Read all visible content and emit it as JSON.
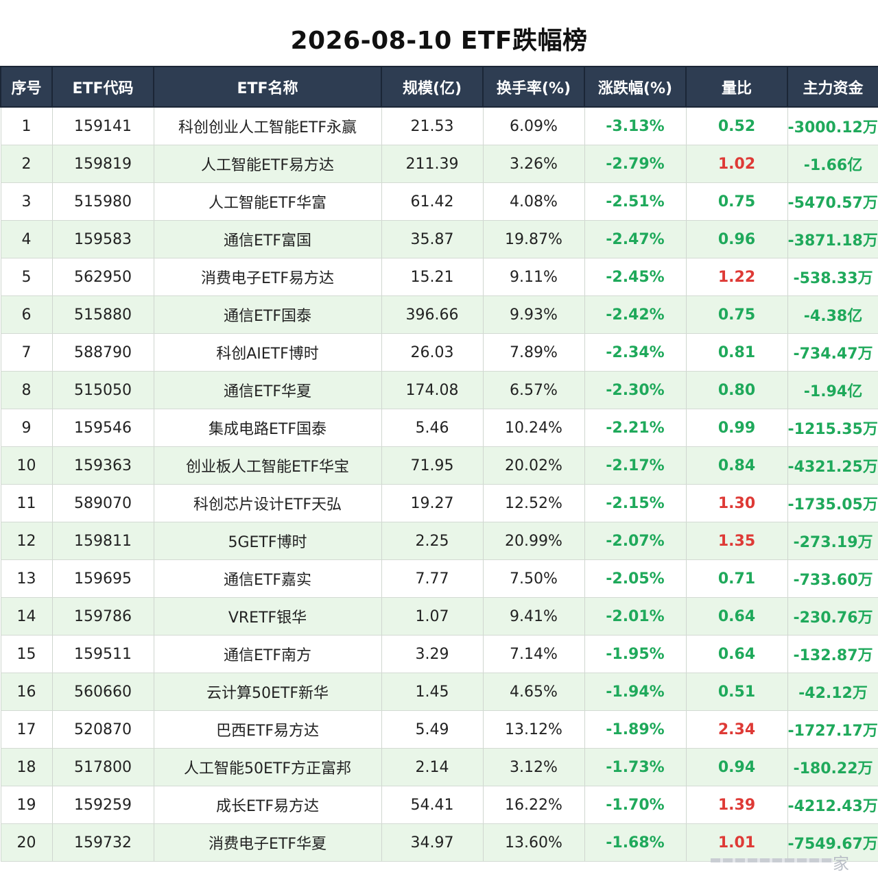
{
  "title": "2026-08-10 ETF跌幅榜",
  "colors": {
    "header_bg": "#2e3d52",
    "row_alt": "#e9f6e8",
    "down": "#1fa95b",
    "up": "#de3a36"
  },
  "headers": [
    "序号",
    "ETF代码",
    "ETF名称",
    "规模(亿)",
    "换手率(%)",
    "涨跌幅(%)",
    "量比",
    "主力资金"
  ],
  "rows": [
    {
      "no": "1",
      "code": "159141",
      "name": "科创创业人工智能ETF永赢",
      "size": "21.53",
      "turnover": "6.09%",
      "change": "-3.13%",
      "ratio": "0.52",
      "ratio_dir": "down",
      "flow": "-3000.12万",
      "flow_unit": "wan"
    },
    {
      "no": "2",
      "code": "159819",
      "name": "人工智能ETF易方达",
      "size": "211.39",
      "turnover": "3.26%",
      "change": "-2.79%",
      "ratio": "1.02",
      "ratio_dir": "up",
      "flow": "-1.66亿",
      "flow_unit": "yi"
    },
    {
      "no": "3",
      "code": "515980",
      "name": "人工智能ETF华富",
      "size": "61.42",
      "turnover": "4.08%",
      "change": "-2.51%",
      "ratio": "0.75",
      "ratio_dir": "down",
      "flow": "-5470.57万",
      "flow_unit": "wan"
    },
    {
      "no": "4",
      "code": "159583",
      "name": "通信ETF富国",
      "size": "35.87",
      "turnover": "19.87%",
      "change": "-2.47%",
      "ratio": "0.96",
      "ratio_dir": "down",
      "flow": "-3871.18万",
      "flow_unit": "wan"
    },
    {
      "no": "5",
      "code": "562950",
      "name": "消费电子ETF易方达",
      "size": "15.21",
      "turnover": "9.11%",
      "change": "-2.45%",
      "ratio": "1.22",
      "ratio_dir": "up",
      "flow": "-538.33万",
      "flow_unit": "yi"
    },
    {
      "no": "6",
      "code": "515880",
      "name": "通信ETF国泰",
      "size": "396.66",
      "turnover": "9.93%",
      "change": "-2.42%",
      "ratio": "0.75",
      "ratio_dir": "down",
      "flow": "-4.38亿",
      "flow_unit": "yi"
    },
    {
      "no": "7",
      "code": "588790",
      "name": "科创AIETF博时",
      "size": "26.03",
      "turnover": "7.89%",
      "change": "-2.34%",
      "ratio": "0.81",
      "ratio_dir": "down",
      "flow": "-734.47万",
      "flow_unit": "yi"
    },
    {
      "no": "8",
      "code": "515050",
      "name": "通信ETF华夏",
      "size": "174.08",
      "turnover": "6.57%",
      "change": "-2.30%",
      "ratio": "0.80",
      "ratio_dir": "down",
      "flow": "-1.94亿",
      "flow_unit": "yi"
    },
    {
      "no": "9",
      "code": "159546",
      "name": "集成电路ETF国泰",
      "size": "5.46",
      "turnover": "10.24%",
      "change": "-2.21%",
      "ratio": "0.99",
      "ratio_dir": "down",
      "flow": "-1215.35万",
      "flow_unit": "wan"
    },
    {
      "no": "10",
      "code": "159363",
      "name": "创业板人工智能ETF华宝",
      "size": "71.95",
      "turnover": "20.02%",
      "change": "-2.17%",
      "ratio": "0.84",
      "ratio_dir": "down",
      "flow": "-4321.25万",
      "flow_unit": "wan"
    },
    {
      "no": "11",
      "code": "589070",
      "name": "科创芯片设计ETF天弘",
      "size": "19.27",
      "turnover": "12.52%",
      "change": "-2.15%",
      "ratio": "1.30",
      "ratio_dir": "up",
      "flow": "-1735.05万",
      "flow_unit": "wan"
    },
    {
      "no": "12",
      "code": "159811",
      "name": "5GETF博时",
      "size": "2.25",
      "turnover": "20.99%",
      "change": "-2.07%",
      "ratio": "1.35",
      "ratio_dir": "up",
      "flow": "-273.19万",
      "flow_unit": "yi"
    },
    {
      "no": "13",
      "code": "159695",
      "name": "通信ETF嘉实",
      "size": "7.77",
      "turnover": "7.50%",
      "change": "-2.05%",
      "ratio": "0.71",
      "ratio_dir": "down",
      "flow": "-733.60万",
      "flow_unit": "yi"
    },
    {
      "no": "14",
      "code": "159786",
      "name": "VRETF银华",
      "size": "1.07",
      "turnover": "9.41%",
      "change": "-2.01%",
      "ratio": "0.64",
      "ratio_dir": "down",
      "flow": "-230.76万",
      "flow_unit": "yi"
    },
    {
      "no": "15",
      "code": "159511",
      "name": "通信ETF南方",
      "size": "3.29",
      "turnover": "7.14%",
      "change": "-1.95%",
      "ratio": "0.64",
      "ratio_dir": "down",
      "flow": "-132.87万",
      "flow_unit": "yi"
    },
    {
      "no": "16",
      "code": "560660",
      "name": "云计算50ETF新华",
      "size": "1.45",
      "turnover": "4.65%",
      "change": "-1.94%",
      "ratio": "0.51",
      "ratio_dir": "down",
      "flow": "-42.12万",
      "flow_unit": "yi"
    },
    {
      "no": "17",
      "code": "520870",
      "name": "巴西ETF易方达",
      "size": "5.49",
      "turnover": "13.12%",
      "change": "-1.89%",
      "ratio": "2.34",
      "ratio_dir": "up",
      "flow": "-1727.17万",
      "flow_unit": "wan"
    },
    {
      "no": "18",
      "code": "517800",
      "name": "人工智能50ETF方正富邦",
      "size": "2.14",
      "turnover": "3.12%",
      "change": "-1.73%",
      "ratio": "0.94",
      "ratio_dir": "down",
      "flow": "-180.22万",
      "flow_unit": "yi"
    },
    {
      "no": "19",
      "code": "159259",
      "name": "成长ETF易方达",
      "size": "54.41",
      "turnover": "16.22%",
      "change": "-1.70%",
      "ratio": "1.39",
      "ratio_dir": "up",
      "flow": "-4212.43万",
      "flow_unit": "wan"
    },
    {
      "no": "20",
      "code": "159732",
      "name": "消费电子ETF华夏",
      "size": "34.97",
      "turnover": "13.60%",
      "change": "-1.68%",
      "ratio": "1.01",
      "ratio_dir": "up",
      "flow": "-7549.67万",
      "flow_unit": "wan"
    }
  ],
  "watermark": "家"
}
